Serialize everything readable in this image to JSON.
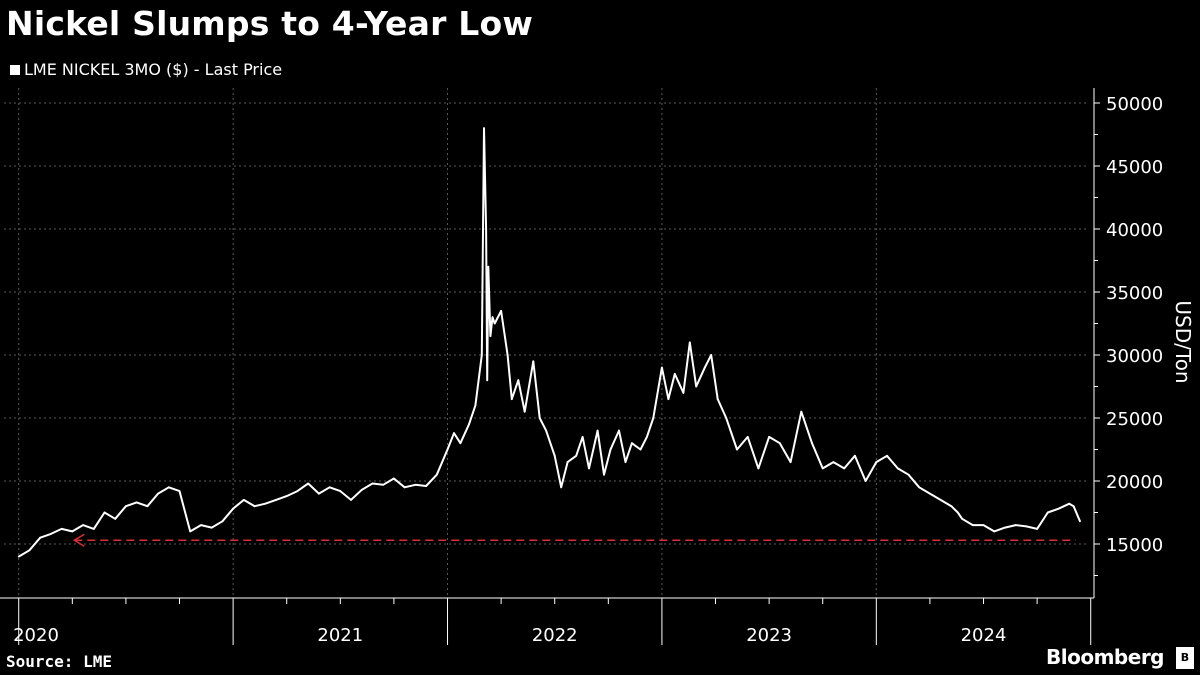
{
  "title": "Nickel Slumps to 4-Year Low",
  "legend_label": "LME NICKEL 3MO ($) - Last Price",
  "source": "Source: LME",
  "brand": "Bloomberg",
  "colors": {
    "background": "#000000",
    "line": "#ffffff",
    "grid": "#5a5a5a",
    "reference": "#d62f3a"
  },
  "chart_data": {
    "type": "line",
    "title": "Nickel Slumps to 4-Year Low",
    "ylabel": "USD/Ton",
    "xlabel": "",
    "ylim": [
      10000,
      51000
    ],
    "xlim": [
      2019.95,
      2024.95
    ],
    "yticks": [
      15000,
      20000,
      25000,
      30000,
      35000,
      40000,
      45000,
      50000
    ],
    "xtick_labels": [
      "2020",
      "2021",
      "2022",
      "2023",
      "2024"
    ],
    "grid": true,
    "legend_position": "top-left",
    "series": [
      {
        "name": "LME NICKEL 3MO ($) - Last Price",
        "x": [
          2020.0,
          2020.05,
          2020.1,
          2020.15,
          2020.2,
          2020.25,
          2020.3,
          2020.35,
          2020.4,
          2020.45,
          2020.5,
          2020.55,
          2020.6,
          2020.65,
          2020.7,
          2020.75,
          2020.8,
          2020.85,
          2020.9,
          2020.95,
          2021.0,
          2021.05,
          2021.1,
          2021.15,
          2021.2,
          2021.25,
          2021.3,
          2021.35,
          2021.4,
          2021.45,
          2021.5,
          2021.55,
          2021.6,
          2021.65,
          2021.7,
          2021.75,
          2021.8,
          2021.85,
          2021.9,
          2021.95,
          2022.0,
          2022.03,
          2022.06,
          2022.1,
          2022.13,
          2022.16,
          2022.17,
          2022.18,
          2022.185,
          2022.19,
          2022.2,
          2022.21,
          2022.22,
          2022.25,
          2022.28,
          2022.3,
          2022.33,
          2022.36,
          2022.4,
          2022.43,
          2022.46,
          2022.5,
          2022.53,
          2022.56,
          2022.6,
          2022.63,
          2022.66,
          2022.7,
          2022.73,
          2022.76,
          2022.8,
          2022.83,
          2022.86,
          2022.9,
          2022.93,
          2022.96,
          2023.0,
          2023.03,
          2023.06,
          2023.1,
          2023.13,
          2023.16,
          2023.2,
          2023.23,
          2023.26,
          2023.3,
          2023.35,
          2023.4,
          2023.45,
          2023.5,
          2023.55,
          2023.6,
          2023.65,
          2023.7,
          2023.75,
          2023.8,
          2023.85,
          2023.9,
          2023.95,
          2024.0,
          2024.05,
          2024.1,
          2024.15,
          2024.2,
          2024.25,
          2024.3,
          2024.35,
          2024.38,
          2024.4,
          2024.45,
          2024.5,
          2024.55,
          2024.6,
          2024.65,
          2024.7,
          2024.75,
          2024.8,
          2024.85,
          2024.9,
          2024.92,
          2024.95
        ],
        "values": [
          14000,
          14500,
          15500,
          15800,
          16200,
          16000,
          16500,
          16200,
          17500,
          17000,
          18000,
          18300,
          18000,
          19000,
          19500,
          19200,
          16000,
          16500,
          16300,
          16800,
          17800,
          18500,
          18000,
          18200,
          18500,
          18800,
          19200,
          19800,
          19000,
          19500,
          19200,
          18500,
          19300,
          19800,
          19700,
          20200,
          19500,
          19700,
          19600,
          20500,
          22500,
          23800,
          23000,
          24500,
          26000,
          30000,
          48000,
          40000,
          28000,
          37000,
          31500,
          33000,
          32500,
          33500,
          30000,
          26500,
          28000,
          25500,
          29500,
          25000,
          24000,
          22000,
          19500,
          21500,
          22000,
          23500,
          21000,
          24000,
          20500,
          22500,
          24000,
          21500,
          23000,
          22500,
          23500,
          25000,
          29000,
          26500,
          28500,
          27000,
          31000,
          27500,
          29000,
          30000,
          26500,
          25000,
          22500,
          23500,
          21000,
          23500,
          23000,
          21500,
          25500,
          23000,
          21000,
          21500,
          21000,
          22000,
          20000,
          21500,
          22000,
          21000,
          20500,
          19500,
          19000,
          18500,
          18000,
          17500,
          17000,
          16500,
          16500,
          16000,
          16300,
          16500,
          16400,
          16200,
          17500,
          17800,
          18200,
          18000,
          16800
        ]
      }
    ],
    "reference_line": {
      "value": 15300,
      "direction": "left-arrow"
    }
  }
}
